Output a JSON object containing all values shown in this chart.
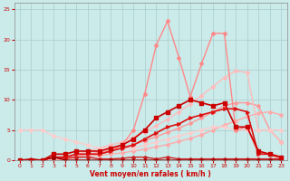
{
  "background_color": "#cbeaea",
  "grid_color": "#aacccc",
  "xlabel": "Vent moyen/en rafales ( km/h )",
  "xlim": [
    -0.5,
    23.5
  ],
  "ylim": [
    0,
    26
  ],
  "yticks": [
    0,
    5,
    10,
    15,
    20,
    25
  ],
  "xticks": [
    0,
    1,
    2,
    3,
    4,
    5,
    6,
    7,
    8,
    9,
    10,
    11,
    12,
    13,
    14,
    15,
    16,
    17,
    18,
    19,
    20,
    21,
    22,
    23
  ],
  "lines": [
    {
      "x": [
        0,
        1,
        2,
        3,
        4,
        5,
        6,
        7,
        8,
        9,
        10,
        11,
        12,
        13,
        14,
        15,
        16,
        17,
        18,
        19,
        20,
        21,
        22,
        23
      ],
      "y": [
        0,
        0,
        0,
        0,
        0.2,
        0.4,
        0.6,
        0.8,
        1.0,
        1.2,
        1.5,
        1.8,
        2.2,
        2.6,
        3.1,
        3.6,
        4.2,
        5.0,
        5.8,
        6.5,
        7.2,
        7.8,
        8.0,
        7.5
      ],
      "color": "#ffaaaa",
      "lw": 1.0,
      "marker": "D",
      "ms": 2.0
    },
    {
      "x": [
        0,
        1,
        2,
        3,
        4,
        5,
        6,
        7,
        8,
        9,
        10,
        11,
        12,
        13,
        14,
        15,
        16,
        17,
        18,
        19,
        20,
        21,
        22,
        23
      ],
      "y": [
        0,
        0,
        0,
        0,
        0.3,
        0.6,
        1.0,
        1.3,
        1.7,
        2.1,
        2.6,
        3.2,
        3.9,
        4.6,
        5.3,
        6.1,
        7.0,
        8.0,
        9.0,
        9.5,
        9.5,
        9.0,
        5.0,
        3.0
      ],
      "color": "#ff9999",
      "lw": 1.0,
      "marker": "D",
      "ms": 2.0
    },
    {
      "x": [
        0,
        1,
        2,
        3,
        4,
        5,
        6,
        7,
        8,
        9,
        10,
        11,
        12,
        13,
        14,
        15,
        16,
        17,
        18,
        19,
        20,
        21,
        22,
        23
      ],
      "y": [
        0,
        0,
        0,
        0.2,
        0.5,
        1.0,
        1.5,
        2.0,
        2.5,
        3.0,
        3.8,
        4.7,
        5.7,
        6.8,
        8.0,
        9.3,
        10.7,
        12.2,
        13.7,
        14.8,
        14.5,
        5.0,
        5.0,
        3.0
      ],
      "color": "#ffbbbb",
      "lw": 1.0,
      "marker": "D",
      "ms": 2.0
    },
    {
      "x": [
        0,
        1,
        2,
        3,
        4,
        5,
        6,
        7,
        8,
        9,
        10,
        11,
        12,
        13,
        14,
        15,
        16,
        17,
        18,
        19,
        20,
        21,
        22,
        23
      ],
      "y": [
        5,
        5,
        5,
        4,
        3.5,
        3,
        2.5,
        2,
        2,
        2,
        2,
        2.5,
        3,
        3.5,
        4,
        4.5,
        5,
        5.5,
        5.5,
        5,
        5,
        5,
        5,
        5
      ],
      "color": "#ffcccc",
      "lw": 1.0,
      "marker": "D",
      "ms": 2.0
    },
    {
      "x": [
        2,
        3,
        4,
        5,
        6,
        7,
        8,
        9,
        10,
        11,
        12,
        13,
        14,
        15,
        16,
        17,
        18,
        19,
        20,
        21,
        22,
        23
      ],
      "y": [
        0,
        0.5,
        0.5,
        1,
        1,
        1,
        1.5,
        2.5,
        5,
        11,
        19,
        23,
        17,
        10.5,
        16,
        21,
        21,
        5,
        5.5,
        1,
        1,
        0
      ],
      "color": "#ff8888",
      "lw": 1.0,
      "marker": "D",
      "ms": 2.0
    },
    {
      "x": [
        0,
        1,
        2,
        3,
        4,
        5,
        6,
        7,
        8,
        9,
        10,
        11,
        12,
        13,
        14,
        15,
        16,
        17,
        18,
        19,
        20,
        21,
        22,
        23
      ],
      "y": [
        0,
        0,
        0,
        0.5,
        0.3,
        0.5,
        0.5,
        0.2,
        0.2,
        0.3,
        0.5,
        0.5,
        0.2,
        0.5,
        0.2,
        0.2,
        0.2,
        0.2,
        0.2,
        0.2,
        0.2,
        0.2,
        0.2,
        0.2
      ],
      "color": "#cc2222",
      "lw": 1.0,
      "marker": "D",
      "ms": 2.0
    },
    {
      "x": [
        0,
        1,
        2,
        3,
        4,
        5,
        6,
        7,
        8,
        9,
        10,
        11,
        12,
        13,
        14,
        15,
        16,
        17,
        18,
        19,
        20,
        21,
        22,
        23
      ],
      "y": [
        0,
        0,
        0,
        0.5,
        0.5,
        1.0,
        1.0,
        1.0,
        1.5,
        2.0,
        2.5,
        3.5,
        4.5,
        5.5,
        6.0,
        7.0,
        7.5,
        8.0,
        8.5,
        8.5,
        8.0,
        1.0,
        1.0,
        0.5
      ],
      "color": "#dd1111",
      "lw": 1.2,
      "marker": ">",
      "ms": 2.5
    },
    {
      "x": [
        0,
        1,
        2,
        3,
        4,
        5,
        6,
        7,
        8,
        9,
        10,
        11,
        12,
        13,
        14,
        15,
        16,
        17,
        18,
        19,
        20,
        21,
        22,
        23
      ],
      "y": [
        0,
        0.2,
        0,
        0.5,
        0,
        0,
        0,
        0,
        0,
        0,
        0,
        0,
        0,
        0,
        0,
        0,
        0,
        0,
        0,
        0,
        0,
        0,
        0,
        0
      ],
      "color": "#990000",
      "lw": 1.0,
      "marker": "^",
      "ms": 2.5
    },
    {
      "x": [
        0,
        1,
        2,
        3,
        4,
        5,
        6,
        7,
        8,
        9,
        10,
        11,
        12,
        13,
        14,
        15,
        16,
        17,
        18,
        19,
        20,
        21,
        22,
        23
      ],
      "y": [
        0,
        0,
        0,
        1,
        1,
        1.5,
        1.5,
        1.5,
        2,
        2.5,
        3.5,
        5,
        7,
        8,
        9,
        10,
        9.5,
        9,
        9.5,
        5.5,
        5.5,
        1.5,
        1,
        0.5
      ],
      "color": "#cc0000",
      "lw": 1.2,
      "marker": "s",
      "ms": 2.5
    }
  ]
}
